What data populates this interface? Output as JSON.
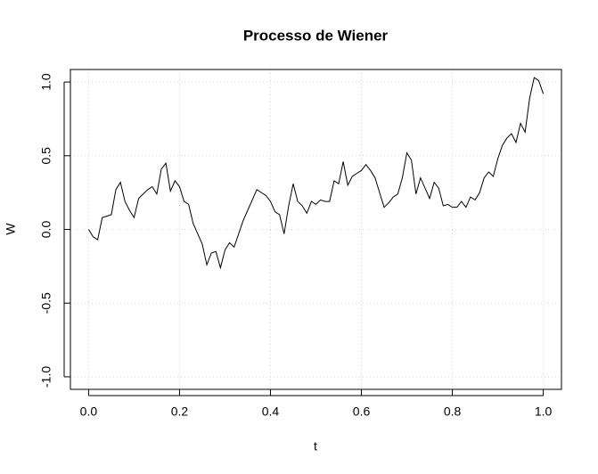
{
  "chart_data": {
    "type": "line",
    "title": "Processo de Wiener",
    "x_label": "t",
    "y_label": "W",
    "x": [
      0,
      0.01,
      0.02,
      0.03,
      0.04,
      0.05,
      0.06,
      0.07,
      0.08,
      0.09,
      0.1,
      0.11,
      0.12,
      0.13,
      0.14,
      0.15,
      0.16,
      0.17,
      0.18,
      0.19,
      0.2,
      0.21,
      0.22,
      0.23,
      0.24,
      0.25,
      0.26,
      0.27,
      0.28,
      0.29,
      0.3,
      0.31,
      0.32,
      0.33,
      0.34,
      0.35,
      0.36,
      0.37,
      0.38,
      0.39,
      0.4,
      0.41,
      0.42,
      0.43,
      0.44,
      0.45,
      0.46,
      0.47,
      0.48,
      0.49,
      0.5,
      0.51,
      0.52,
      0.53,
      0.54,
      0.55,
      0.56,
      0.57,
      0.58,
      0.59,
      0.6,
      0.61,
      0.62,
      0.63,
      0.64,
      0.65,
      0.66,
      0.67,
      0.68,
      0.69,
      0.7,
      0.71,
      0.72,
      0.73,
      0.74,
      0.75,
      0.76,
      0.77,
      0.78,
      0.79,
      0.8,
      0.81,
      0.82,
      0.83,
      0.84,
      0.85,
      0.86,
      0.87,
      0.88,
      0.89,
      0.9,
      0.91,
      0.92,
      0.93,
      0.94,
      0.95,
      0.96,
      0.97,
      0.98,
      0.99,
      1
    ],
    "values": [
      0,
      -0.05,
      -0.07,
      0.08,
      0.09,
      0.1,
      0.27,
      0.32,
      0.19,
      0.13,
      0.08,
      0.21,
      0.24,
      0.27,
      0.29,
      0.24,
      0.41,
      0.45,
      0.26,
      0.33,
      0.29,
      0.19,
      0.17,
      0.04,
      -0.03,
      -0.1,
      -0.24,
      -0.16,
      -0.15,
      -0.26,
      -0.14,
      -0.09,
      -0.12,
      -0.03,
      0.06,
      0.13,
      0.2,
      0.27,
      0.25,
      0.23,
      0.19,
      0.12,
      0.1,
      -0.03,
      0.16,
      0.31,
      0.19,
      0.16,
      0.11,
      0.19,
      0.17,
      0.2,
      0.19,
      0.19,
      0.33,
      0.31,
      0.46,
      0.3,
      0.36,
      0.38,
      0.4,
      0.44,
      0.4,
      0.35,
      0.25,
      0.15,
      0.18,
      0.22,
      0.24,
      0.35,
      0.52,
      0.47,
      0.24,
      0.35,
      0.28,
      0.21,
      0.32,
      0.28,
      0.16,
      0.17,
      0.15,
      0.15,
      0.19,
      0.15,
      0.22,
      0.2,
      0.25,
      0.35,
      0.39,
      0.36,
      0.48,
      0.57,
      0.62,
      0.65,
      0.59,
      0.72,
      0.66,
      0.89,
      1.03,
      1.01,
      0.92
    ],
    "color": "#000000",
    "xlim": [
      -0.04,
      1.04
    ],
    "ylim": [
      -1.085,
      1.085
    ],
    "xticks": [
      {
        "value": 0,
        "label": "0.0"
      },
      0.2,
      0.4,
      0.6,
      0.8,
      {
        "value": 1,
        "label": "1.0"
      }
    ],
    "yticks": [
      {
        "value": -1,
        "label": "-1.0"
      },
      -0.5,
      {
        "value": 0,
        "label": "0.0"
      },
      0.5,
      {
        "value": 1,
        "label": "1.0"
      }
    ],
    "grid": true
  }
}
